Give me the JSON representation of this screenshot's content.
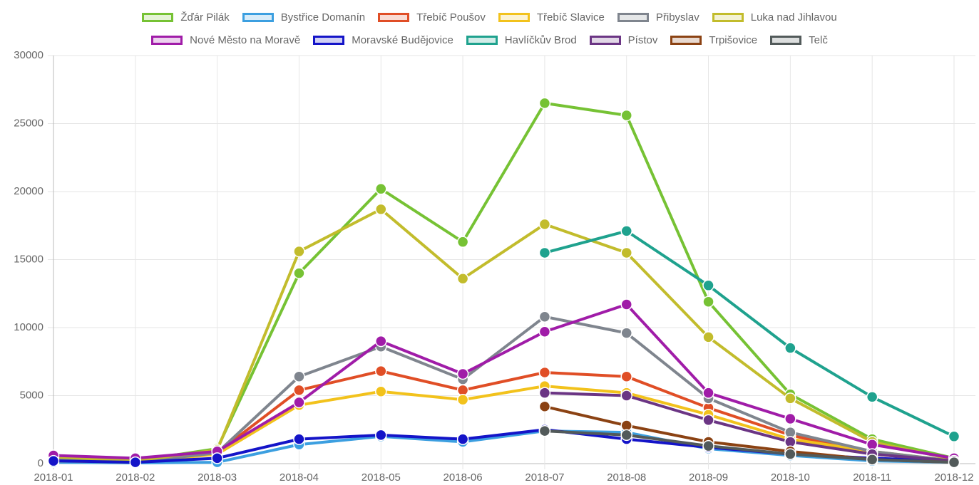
{
  "chart_data": {
    "type": "line",
    "categories": [
      "2018-01",
      "2018-02",
      "2018-03",
      "2018-04",
      "2018-05",
      "2018-06",
      "2018-07",
      "2018-08",
      "2018-09",
      "2018-10",
      "2018-11",
      "2018-12"
    ],
    "ylim": [
      0,
      30000
    ],
    "yticks": [
      0,
      5000,
      10000,
      15000,
      20000,
      25000,
      30000
    ],
    "grid": true,
    "legend": "top",
    "series": [
      {
        "name": "Žďár Pilák",
        "color": "#76c234",
        "values": [
          600,
          200,
          1100,
          14000,
          20200,
          16300,
          26500,
          25600,
          11900,
          5100,
          1800,
          400
        ]
      },
      {
        "name": "Bystřice Domanín",
        "color": "#3c9fe0",
        "values": [
          100,
          50,
          100,
          1400,
          2000,
          1600,
          2400,
          2300,
          1100,
          600,
          200,
          100
        ]
      },
      {
        "name": "Třebíč Poušov",
        "color": "#e04e26",
        "values": [
          300,
          100,
          800,
          5400,
          6800,
          5400,
          6700,
          6400,
          4100,
          2100,
          700,
          200
        ]
      },
      {
        "name": "Třebíč Slavice",
        "color": "#f2c21c",
        "values": [
          200,
          100,
          700,
          4300,
          5300,
          4700,
          5700,
          5200,
          3600,
          1800,
          900,
          200
        ]
      },
      {
        "name": "Přibyslav",
        "color": "#7f858e",
        "values": [
          300,
          100,
          800,
          6400,
          8600,
          6200,
          10800,
          9600,
          4800,
          2300,
          900,
          200
        ]
      },
      {
        "name": "Luka nad Jihlavou",
        "color": "#c2bc2c",
        "values": [
          500,
          200,
          1000,
          15600,
          18700,
          13600,
          17600,
          15500,
          9300,
          4800,
          1600,
          300
        ]
      },
      {
        "name": "Nové Město na Moravě",
        "color": "#a01ca8",
        "values": [
          600,
          400,
          900,
          4500,
          9000,
          6600,
          9700,
          11700,
          5200,
          3300,
          1400,
          400
        ]
      },
      {
        "name": "Moravské Budějovice",
        "color": "#1414c8",
        "values": [
          200,
          100,
          400,
          1800,
          2100,
          1800,
          2500,
          1800,
          1200,
          700,
          400,
          200
        ]
      },
      {
        "name": "Havlíčkův Brod",
        "color": "#1fa28e",
        "values": [
          null,
          null,
          null,
          null,
          null,
          null,
          15500,
          17100,
          13100,
          8500,
          4900,
          2000
        ]
      },
      {
        "name": "Pístov",
        "color": "#6b3584",
        "values": [
          null,
          null,
          null,
          null,
          null,
          null,
          5200,
          5000,
          3200,
          1600,
          700,
          200
        ]
      },
      {
        "name": "Trpišovice",
        "color": "#8b4213",
        "values": [
          null,
          null,
          null,
          null,
          null,
          null,
          4200,
          2800,
          1600,
          900,
          300,
          100
        ]
      },
      {
        "name": "Telč",
        "color": "#525a5a",
        "values": [
          null,
          null,
          null,
          null,
          null,
          null,
          2400,
          2100,
          1300,
          700,
          300,
          100
        ]
      }
    ]
  }
}
